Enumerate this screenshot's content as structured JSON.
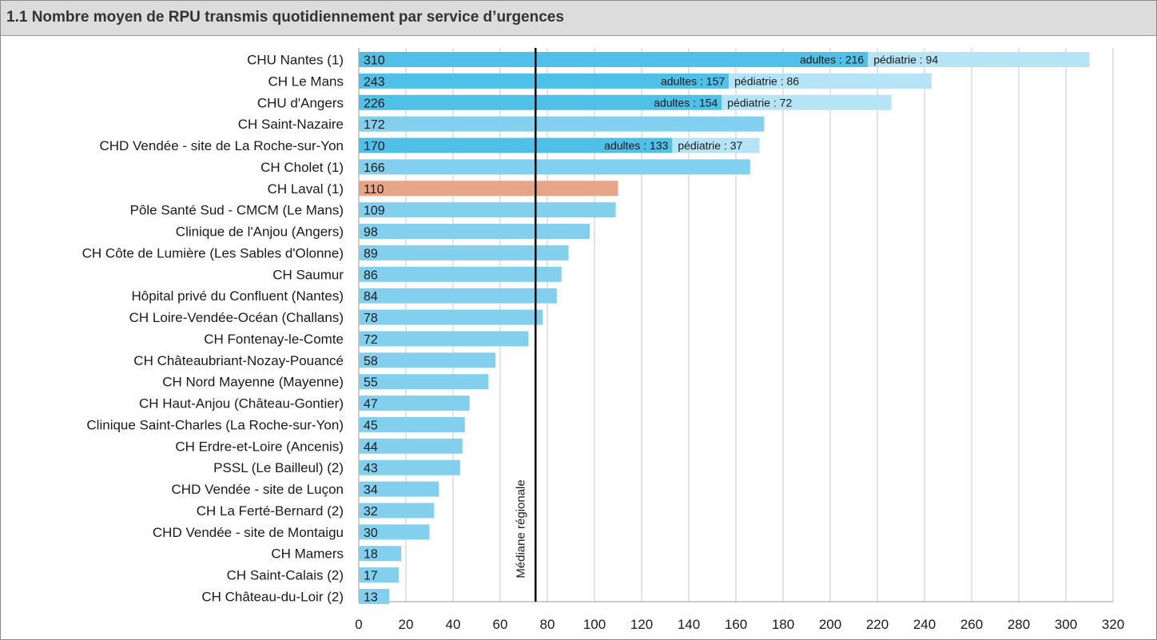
{
  "title": "1.1 Nombre moyen de RPU transmis quotidiennement par service d’urgences",
  "chart_data": {
    "type": "bar",
    "orientation": "horizontal",
    "categories": [
      "CHU Nantes (1)",
      "CH Le Mans",
      "CHU d'Angers",
      "CH Saint-Nazaire",
      "CHD Vendée - site de La Roche-sur-Yon",
      "CH Cholet (1)",
      "CH Laval (1)",
      "Pôle Santé Sud - CMCM (Le Mans)",
      "Clinique de l'Anjou (Angers)",
      "CH Côte de Lumière (Les Sables d'Olonne)",
      "CH Saumur",
      "Hôpital privé du Confluent (Nantes)",
      "CH Loire-Vendée-Océan (Challans)",
      "CH Fontenay-le-Comte",
      "CH Châteaubriant-Nozay-Pouancé",
      "CH Nord Mayenne (Mayenne)",
      "CH Haut-Anjou (Château-Gontier)",
      "Clinique Saint-Charles (La Roche-sur-Yon)",
      "CH Erdre-et-Loire (Ancenis)",
      "PSSL (Le Bailleul) (2)",
      "CHD Vendée - site de Luçon",
      "CH La Ferté-Bernard (2)",
      "CHD Vendée - site de Montaigu",
      "CH Mamers",
      "CH Saint-Calais (2)",
      "CH Château-du-Loir (2)"
    ],
    "values": [
      310,
      243,
      226,
      172,
      170,
      166,
      110,
      109,
      98,
      89,
      86,
      84,
      78,
      72,
      58,
      55,
      47,
      45,
      44,
      43,
      34,
      32,
      30,
      18,
      17,
      13
    ],
    "highlight_index": 6,
    "splits": [
      {
        "index": 0,
        "adultes": 216,
        "pediatrie": 94,
        "adultes_label": "adultes : 216",
        "pediatrie_label": "pédiatrie : 94"
      },
      {
        "index": 1,
        "adultes": 157,
        "pediatrie": 86,
        "adultes_label": "adultes : 157",
        "pediatrie_label": "pédiatrie : 86"
      },
      {
        "index": 2,
        "adultes": 154,
        "pediatrie": 72,
        "adultes_label": "adultes : 154",
        "pediatrie_label": "pédiatrie : 72"
      },
      {
        "index": 4,
        "adultes": 133,
        "pediatrie": 37,
        "adultes_label": "adultes : 133",
        "pediatrie_label": "pédiatrie : 37"
      }
    ],
    "median": {
      "value": 75,
      "label": "Médiane régionale"
    },
    "xlim": [
      0,
      320
    ],
    "xticks": [
      0,
      20,
      40,
      60,
      80,
      100,
      120,
      140,
      160,
      180,
      200,
      220,
      240,
      260,
      280,
      300,
      320
    ],
    "grid": true,
    "colors": {
      "bar": "#83d0ee",
      "adultes": "#4fc0e8",
      "pediatrie": "#b5e4f6",
      "highlight": "#e7a587",
      "grid": "#c8c8c8",
      "median": "#000000",
      "text": "#1a1a1a"
    }
  }
}
